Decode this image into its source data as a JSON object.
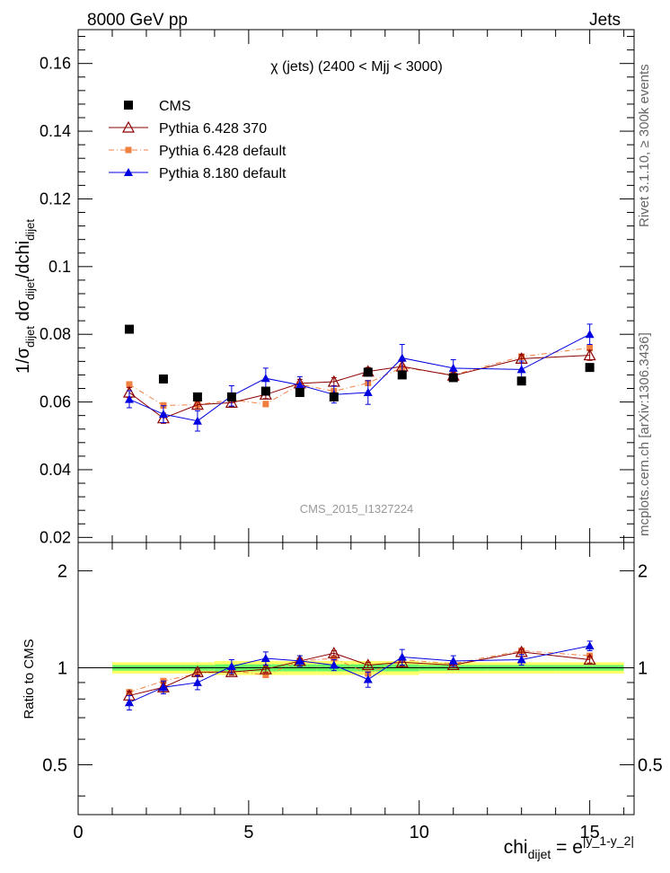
{
  "header": {
    "left": "8000 GeV pp",
    "right": "Jets"
  },
  "side": {
    "rivet": "Rivet 3.1.10, ≥ 300k events",
    "mcplots": "mcplots.cern.ch [arXiv:1306.3436]"
  },
  "colors": {
    "cms": "#000000",
    "p6_370": "#8b0000",
    "p6_default": "#f08040",
    "p8_default": "#0000e0",
    "band_outer": "#ffff66",
    "band_inner": "#66ff66"
  },
  "chart_data": [
    {
      "type": "scatter",
      "title": "χ (jets) (2400 < Mjj < 3000)",
      "watermark": "CMS_2015_I1327224",
      "ylabel": "1/σ_dijet dσ_dijet/dchi_dijet",
      "ylabel_parts": {
        "a": "1/σ",
        "b": "dijet",
        "c": " dσ",
        "d": "dijet",
        "e": "/dchi",
        "f": "dijet"
      },
      "xlim": [
        0,
        16.3
      ],
      "ylim": [
        0.0185,
        0.17
      ],
      "yticks": [
        0.02,
        0.04,
        0.06,
        0.08,
        0.1,
        0.12,
        0.14,
        0.16
      ],
      "ytick_labels": [
        "0.02",
        "0.04",
        "0.06",
        "0.08",
        "0.1",
        "0.12",
        "0.14",
        "0.16"
      ],
      "series": [
        {
          "name": "CMS",
          "key": "cms",
          "x": [
            1.5,
            2.5,
            3.5,
            4.5,
            5.5,
            6.5,
            7.5,
            8.5,
            9.5,
            11,
            13,
            15
          ],
          "y": [
            0.0815,
            0.0668,
            0.0615,
            0.0615,
            0.0632,
            0.0628,
            0.0615,
            0.0688,
            0.068,
            0.0672,
            0.0662,
            0.0702
          ],
          "err": [
            0,
            0,
            0,
            0,
            0,
            0,
            0,
            0,
            0,
            0,
            0,
            0
          ]
        },
        {
          "name": "Pythia 6.428 370",
          "key": "p6_370",
          "x": [
            1.5,
            2.5,
            3.5,
            4.5,
            5.5,
            6.5,
            7.5,
            8.5,
            9.5,
            11,
            13,
            15
          ],
          "y": [
            0.0628,
            0.0552,
            0.0592,
            0.0598,
            0.0622,
            0.0655,
            0.066,
            0.069,
            0.0705,
            0.0678,
            0.0728,
            0.0738
          ],
          "err": [
            0.0015,
            0.0015,
            0.0012,
            0.0012,
            0.0012,
            0.0012,
            0.0012,
            0.0012,
            0.0015,
            0.0012,
            0.0012,
            0.0015
          ]
        },
        {
          "name": "Pythia 6.428 default",
          "key": "p6_default",
          "x": [
            1.5,
            2.5,
            3.5,
            4.5,
            5.5,
            6.5,
            7.5,
            8.5,
            9.5,
            11,
            13,
            15
          ],
          "y": [
            0.0652,
            0.059,
            0.0592,
            0.0606,
            0.0594,
            0.0652,
            0.0632,
            0.0656,
            0.0702,
            0.068,
            0.0734,
            0.076
          ],
          "err": [
            0.0008,
            0.0008,
            0.0008,
            0.0008,
            0.0008,
            0.0008,
            0.0008,
            0.0008,
            0.0008,
            0.0008,
            0.0008,
            0.0008
          ]
        },
        {
          "name": "Pythia 8.180 default",
          "key": "p8_default",
          "x": [
            1.5,
            2.5,
            3.5,
            4.5,
            5.5,
            6.5,
            7.5,
            8.5,
            9.5,
            11,
            13,
            15
          ],
          "y": [
            0.0608,
            0.0564,
            0.0544,
            0.0618,
            0.067,
            0.065,
            0.0622,
            0.0628,
            0.073,
            0.07,
            0.0696,
            0.08
          ],
          "err": [
            0.0025,
            0.0025,
            0.003,
            0.003,
            0.003,
            0.0025,
            0.0025,
            0.0035,
            0.004,
            0.0025,
            0.0025,
            0.003
          ]
        }
      ]
    },
    {
      "type": "scatter",
      "title": "Ratio to CMS",
      "ylabel": "Ratio to CMS",
      "xlabel": "chi_dijet = e^|y_1-y_2|",
      "xlabel_parts": {
        "a": "chi",
        "b": "dijet",
        "c": " = e",
        "d": "|y_1-y_2|"
      },
      "xlim": [
        0,
        16.3
      ],
      "ylim": [
        0.35,
        2.45
      ],
      "xticks": [
        0,
        5,
        10,
        15
      ],
      "xtick_labels": [
        "0",
        "5",
        "10",
        "15"
      ],
      "yticks": [
        0.5,
        1,
        2
      ],
      "ytick_labels": [
        "0.5",
        "1",
        "2"
      ],
      "band": {
        "x": [
          1,
          2,
          3,
          4,
          5,
          6,
          7,
          8,
          9,
          10,
          12,
          14,
          16
        ],
        "outer": [
          0.04,
          0.04,
          0.04,
          0.05,
          0.05,
          0.05,
          0.05,
          0.05,
          0.05,
          0.04,
          0.04,
          0.04
        ],
        "inner": [
          0.02,
          0.02,
          0.02,
          0.025,
          0.025,
          0.025,
          0.025,
          0.025,
          0.025,
          0.02,
          0.02,
          0.02
        ]
      },
      "series": [
        {
          "name": "Pythia 6.428 370",
          "key": "p6_370",
          "x": [
            1.5,
            2.5,
            3.5,
            4.5,
            5.5,
            6.5,
            7.5,
            8.5,
            9.5,
            11,
            13,
            15
          ],
          "y": [
            0.82,
            0.87,
            0.97,
            0.97,
            0.99,
            1.05,
            1.11,
            1.02,
            1.04,
            1.02,
            1.12,
            1.06
          ],
          "err": [
            0.025,
            0.03,
            0.02,
            0.02,
            0.02,
            0.02,
            0.02,
            0.02,
            0.025,
            0.02,
            0.02,
            0.025
          ]
        },
        {
          "name": "Pythia 6.428 default",
          "key": "p6_default",
          "x": [
            1.5,
            2.5,
            3.5,
            4.5,
            5.5,
            6.5,
            7.5,
            8.5,
            9.5,
            11,
            13,
            15
          ],
          "y": [
            0.84,
            0.91,
            0.96,
            0.98,
            0.95,
            1.05,
            1.07,
            0.96,
            1.06,
            1.03,
            1.13,
            1.09
          ],
          "err": [
            0.012,
            0.012,
            0.012,
            0.012,
            0.012,
            0.012,
            0.012,
            0.012,
            0.012,
            0.012,
            0.012,
            0.012
          ]
        },
        {
          "name": "Pythia 8.180 default",
          "key": "p8_default",
          "x": [
            1.5,
            2.5,
            3.5,
            4.5,
            5.5,
            6.5,
            7.5,
            8.5,
            9.5,
            11,
            13,
            15
          ],
          "y": [
            0.78,
            0.87,
            0.9,
            1.01,
            1.07,
            1.05,
            1.02,
            0.92,
            1.08,
            1.05,
            1.06,
            1.17
          ],
          "err": [
            0.04,
            0.04,
            0.045,
            0.05,
            0.05,
            0.04,
            0.04,
            0.05,
            0.06,
            0.04,
            0.04,
            0.04
          ]
        }
      ]
    }
  ]
}
